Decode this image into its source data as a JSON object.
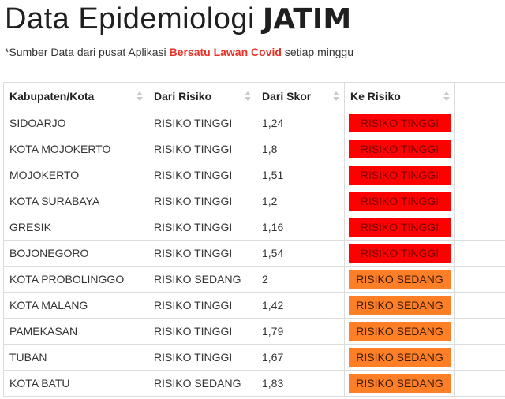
{
  "header": {
    "title_light": "Data Epidemiologi",
    "title_bold": "JATIM"
  },
  "source": {
    "prefix": "*Sumber Data dari pusat Aplikasi ",
    "link": "Bersatu Lawan Covid",
    "suffix": " setiap minggu"
  },
  "colors": {
    "risiko_tinggi": "#ff0000",
    "risiko_sedang": "#ff7f27",
    "link": "#e8332a"
  },
  "table": {
    "columns": [
      "Kabupaten/Kota",
      "Dari Risiko",
      "Dari Skor",
      "Ke Risiko",
      ""
    ],
    "rows": [
      {
        "kab": "SIDOARJO",
        "dari": "RISIKO TINGGI",
        "skor": "1,24",
        "ke": "RISIKO TINGGI",
        "level": "tinggi"
      },
      {
        "kab": "KOTA MOJOKERTO",
        "dari": "RISIKO TINGGI",
        "skor": "1,8",
        "ke": "RISIKO TINGGI",
        "level": "tinggi"
      },
      {
        "kab": "MOJOKERTO",
        "dari": "RISIKO TINGGI",
        "skor": "1,51",
        "ke": "RISIKO TINGGI",
        "level": "tinggi"
      },
      {
        "kab": "KOTA SURABAYA",
        "dari": "RISIKO TINGGI",
        "skor": "1,2",
        "ke": "RISIKO TINGGI",
        "level": "tinggi"
      },
      {
        "kab": "GRESIK",
        "dari": "RISIKO TINGGI",
        "skor": "1,16",
        "ke": "RISIKO TINGGI",
        "level": "tinggi"
      },
      {
        "kab": "BOJONEGORO",
        "dari": "RISIKO TINGGI",
        "skor": "1,54",
        "ke": "RISIKO TINGGI",
        "level": "tinggi"
      },
      {
        "kab": "KOTA PROBOLINGGO",
        "dari": "RISIKO SEDANG",
        "skor": "2",
        "ke": "RISIKO SEDANG",
        "level": "sedang"
      },
      {
        "kab": "KOTA MALANG",
        "dari": "RISIKO TINGGI",
        "skor": "1,42",
        "ke": "RISIKO SEDANG",
        "level": "sedang"
      },
      {
        "kab": "PAMEKASAN",
        "dari": "RISIKO TINGGI",
        "skor": "1,79",
        "ke": "RISIKO SEDANG",
        "level": "sedang"
      },
      {
        "kab": "TUBAN",
        "dari": "RISIKO TINGGI",
        "skor": "1,67",
        "ke": "RISIKO SEDANG",
        "level": "sedang"
      },
      {
        "kab": "KOTA BATU",
        "dari": "RISIKO SEDANG",
        "skor": "1,83",
        "ke": "RISIKO SEDANG",
        "level": "sedang"
      }
    ]
  }
}
